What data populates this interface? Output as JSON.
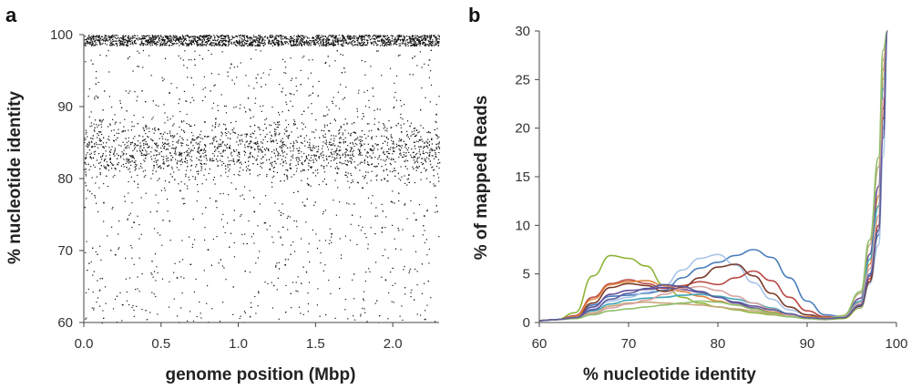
{
  "chart_data": [
    {
      "panel": "a",
      "type": "scatter",
      "xlabel": "genome position (Mbp)",
      "ylabel": "% nucleotide identity",
      "xlim": [
        0,
        2.3
      ],
      "ylim": [
        60,
        100
      ],
      "x_ticks": [
        "0.0",
        "0.5",
        "1.0",
        "1.5",
        "2.0"
      ],
      "y_ticks": [
        "60",
        "70",
        "80",
        "90",
        "100"
      ],
      "point_color": "#111111",
      "description_of_distribution": {
        "dense_band": [
          98.5,
          100
        ],
        "secondary_cluster": [
          78,
          90
        ],
        "sparse_range": [
          60,
          98
        ]
      },
      "series": [
        {
          "points": [
            [
              0.02,
              99.6
            ],
            [
              0.1,
              88.1
            ],
            [
              0.12,
              84.5
            ],
            [
              0.15,
              82.0
            ],
            [
              0.2,
              69.5
            ],
            [
              0.25,
              86.7
            ],
            [
              0.3,
              83.2
            ],
            [
              0.32,
              74.0
            ],
            [
              0.4,
              87.3
            ],
            [
              0.45,
              81.9
            ],
            [
              0.52,
              85.0
            ],
            [
              0.55,
              92.0
            ],
            [
              0.6,
              66.3
            ],
            [
              0.62,
              78.4
            ],
            [
              0.7,
              85.6
            ],
            [
              0.75,
              83.1
            ],
            [
              0.8,
              70.2
            ],
            [
              0.85,
              88.4
            ],
            [
              0.9,
              84.0
            ],
            [
              0.95,
              96.0
            ],
            [
              1.0,
              82.7
            ],
            [
              1.05,
              86.2
            ],
            [
              1.1,
              75.5
            ],
            [
              1.15,
              83.8
            ],
            [
              1.2,
              81.4
            ],
            [
              1.25,
              87.9
            ],
            [
              1.3,
              68.1
            ],
            [
              1.35,
              84.6
            ],
            [
              1.4,
              86.0
            ],
            [
              1.45,
              79.2
            ],
            [
              1.5,
              83.3
            ],
            [
              1.55,
              88.8
            ],
            [
              1.6,
              72.4
            ],
            [
              1.65,
              85.1
            ],
            [
              1.7,
              82.0
            ],
            [
              1.75,
              86.5
            ],
            [
              1.8,
              78.8
            ],
            [
              1.85,
              84.2
            ],
            [
              1.9,
              87.0
            ],
            [
              1.95,
              66.0
            ],
            [
              2.0,
              83.9
            ],
            [
              2.05,
              85.5
            ],
            [
              2.1,
              80.6
            ],
            [
              2.15,
              86.8
            ],
            [
              2.2,
              74.9
            ],
            [
              2.25,
              84.0
            ],
            [
              2.28,
              99.4
            ]
          ]
        }
      ]
    },
    {
      "panel": "b",
      "type": "line",
      "xlabel": "% nucleotide identity",
      "ylabel": "% of mapped Reads",
      "xlim": [
        60,
        100
      ],
      "ylim": [
        0,
        30
      ],
      "x_ticks": [
        "60",
        "70",
        "80",
        "90",
        "100"
      ],
      "y_ticks": [
        "0",
        "5",
        "10",
        "15",
        "20",
        "25",
        "30"
      ],
      "x": [
        60,
        62,
        64,
        66,
        68,
        70,
        72,
        74,
        76,
        78,
        80,
        82,
        84,
        86,
        88,
        90,
        92,
        94,
        96,
        97,
        98,
        98.5,
        99
      ],
      "series": [
        {
          "color": "#8db43a",
          "values": [
            0.2,
            0.3,
            1.0,
            4.8,
            6.9,
            6.6,
            5.8,
            3.8,
            2.6,
            2.0,
            1.6,
            1.3,
            1.0,
            0.8,
            0.6,
            0.4,
            0.3,
            0.4,
            1.5,
            4.0,
            11.0,
            25.0,
            30.0
          ]
        },
        {
          "color": "#4a7ebb",
          "values": [
            0.2,
            0.3,
            0.6,
            1.8,
            2.7,
            2.8,
            3.0,
            3.3,
            4.6,
            5.6,
            6.2,
            6.9,
            7.5,
            6.7,
            4.6,
            2.2,
            0.8,
            0.6,
            2.0,
            5.0,
            9.0,
            20.0,
            30.0
          ]
        },
        {
          "color": "#a9c4e8",
          "values": [
            0.2,
            0.3,
            0.5,
            1.4,
            2.2,
            2.6,
            3.1,
            3.8,
            5.4,
            6.6,
            7.0,
            5.9,
            4.1,
            2.4,
            1.3,
            0.8,
            0.6,
            0.6,
            1.6,
            4.0,
            8.0,
            17.0,
            30.0
          ]
        },
        {
          "color": "#b94a45",
          "values": [
            0.2,
            0.3,
            0.7,
            2.6,
            4.0,
            4.4,
            4.0,
            3.5,
            3.8,
            4.2,
            3.9,
            4.6,
            5.3,
            4.3,
            2.6,
            1.2,
            0.6,
            0.5,
            1.8,
            4.5,
            10.0,
            22.0,
            30.0
          ]
        },
        {
          "color": "#7b3b2a",
          "values": [
            0.2,
            0.3,
            0.6,
            2.0,
            3.6,
            4.0,
            3.8,
            3.2,
            3.6,
            4.6,
            5.7,
            6.0,
            4.8,
            3.0,
            1.6,
            0.8,
            0.5,
            0.5,
            1.7,
            4.2,
            9.5,
            21.0,
            30.0
          ]
        },
        {
          "color": "#e0843a",
          "values": [
            0.2,
            0.3,
            0.6,
            2.4,
            3.9,
            4.2,
            4.3,
            3.8,
            3.2,
            2.7,
            2.2,
            1.8,
            1.5,
            1.1,
            0.8,
            0.6,
            0.5,
            0.6,
            2.2,
            6.0,
            13.0,
            26.0,
            30.0
          ]
        },
        {
          "color": "#6a4f9a",
          "values": [
            0.2,
            0.3,
            0.5,
            1.6,
            2.9,
            3.3,
            3.4,
            3.6,
            3.4,
            3.1,
            2.6,
            2.0,
            1.5,
            1.0,
            0.6,
            0.4,
            0.3,
            0.6,
            2.5,
            7.0,
            14.0,
            24.0,
            30.0
          ]
        },
        {
          "color": "#3fa5b8",
          "values": [
            0.2,
            0.3,
            0.5,
            1.2,
            1.9,
            2.3,
            2.5,
            2.6,
            2.8,
            2.9,
            2.7,
            2.4,
            2.0,
            1.5,
            0.9,
            0.5,
            0.4,
            0.6,
            2.2,
            6.5,
            12.0,
            24.0,
            30.0
          ]
        },
        {
          "color": "#c7a87a",
          "values": [
            0.2,
            0.3,
            0.4,
            1.0,
            1.7,
            2.0,
            2.1,
            2.0,
            1.9,
            1.8,
            1.6,
            1.4,
            1.2,
            0.9,
            0.6,
            0.4,
            0.3,
            0.7,
            3.0,
            8.0,
            16.0,
            27.0,
            30.0
          ]
        },
        {
          "color": "#d7a3a1",
          "values": [
            0.2,
            0.3,
            0.4,
            0.9,
            1.5,
            1.9,
            2.3,
            2.9,
            3.5,
            3.7,
            3.3,
            2.7,
            2.0,
            1.4,
            0.8,
            0.5,
            0.4,
            0.6,
            2.0,
            5.5,
            11.0,
            23.0,
            30.0
          ]
        },
        {
          "color": "#8fbf6a",
          "values": [
            0.2,
            0.3,
            0.4,
            0.8,
            1.2,
            1.4,
            1.6,
            1.8,
            2.0,
            2.2,
            2.1,
            1.8,
            1.4,
            1.0,
            0.6,
            0.4,
            0.3,
            0.7,
            3.2,
            8.5,
            17.0,
            28.0,
            30.0
          ]
        },
        {
          "color": "#5c5c9e",
          "values": [
            0.2,
            0.3,
            0.5,
            1.3,
            2.4,
            3.0,
            3.5,
            3.9,
            3.7,
            3.2,
            2.6,
            2.1,
            1.7,
            1.3,
            0.9,
            0.5,
            0.4,
            0.5,
            1.8,
            4.8,
            9.5,
            19.0,
            30.0
          ]
        }
      ]
    }
  ],
  "panels": {
    "a": {
      "letter": "a",
      "xlabel": "genome position (Mbp)",
      "ylabel": "% nucleotide identity"
    },
    "b": {
      "letter": "b",
      "xlabel": "% nucleotide identity",
      "ylabel": "% of mapped Reads"
    }
  }
}
